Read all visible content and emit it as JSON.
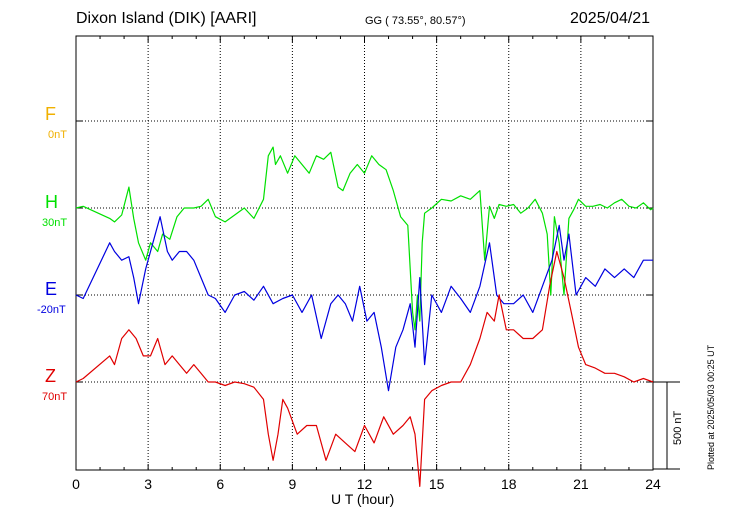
{
  "header": {
    "station": "Dixon Island (DIK)  [AARI]",
    "coords": "GG ( 73.55°,  80.57°)",
    "date": "2025/04/21"
  },
  "footer": {
    "plotted": "Plotted at 2025/05/03 00:25 UT",
    "scale_bar": "500 nT"
  },
  "chart_data": {
    "type": "line",
    "xlabel": "U T (hour)",
    "xlim": [
      0,
      24
    ],
    "xticks": [
      0,
      3,
      6,
      9,
      12,
      15,
      18,
      21,
      24
    ],
    "grid": true,
    "series": [
      {
        "name": "F",
        "baseline_label": "0nT",
        "color": "#f0b000",
        "x": [],
        "y": []
      },
      {
        "name": "H",
        "baseline_label": "30nT",
        "color": "#00e000",
        "x": [
          0,
          0.3,
          1.4,
          1.6,
          1.9,
          2.2,
          2.4,
          2.6,
          2.9,
          3.1,
          3.4,
          3.6,
          3.9,
          4.2,
          4.5,
          4.9,
          5.2,
          5.5,
          5.8,
          6.2,
          6.6,
          7.0,
          7.4,
          7.8,
          8.0,
          8.2,
          8.3,
          8.5,
          8.8,
          9.1,
          9.4,
          9.7,
          10.0,
          10.3,
          10.6,
          10.9,
          11.1,
          11.4,
          11.7,
          12.0,
          12.3,
          12.6,
          12.9,
          13.2,
          13.5,
          13.8,
          14.0,
          14.1,
          14.2,
          14.3,
          14.4,
          14.5,
          14.8,
          15.2,
          15.6,
          16.0,
          16.4,
          16.8,
          17.0,
          17.2,
          17.4,
          17.6,
          17.9,
          18.2,
          18.5,
          18.8,
          19.1,
          19.4,
          19.6,
          19.75,
          19.9,
          20.1,
          20.3,
          20.5,
          20.7,
          20.9,
          21.2,
          21.5,
          21.8,
          22.1,
          22.4,
          22.7,
          23.0,
          23.3,
          23.6,
          23.9,
          24
        ],
        "y": [
          0,
          10,
          -60,
          -80,
          -40,
          120,
          -60,
          -200,
          -300,
          -200,
          -250,
          -150,
          -180,
          -50,
          0,
          0,
          10,
          50,
          -50,
          -80,
          -40,
          0,
          -60,
          50,
          300,
          350,
          250,
          300,
          200,
          300,
          250,
          200,
          300,
          280,
          320,
          120,
          100,
          200,
          250,
          200,
          300,
          250,
          220,
          100,
          -50,
          -100,
          -600,
          -700,
          -500,
          -650,
          -200,
          -30,
          0,
          50,
          40,
          70,
          50,
          100,
          -300,
          10,
          -60,
          20,
          10,
          20,
          -30,
          0,
          50,
          -30,
          -150,
          -500,
          -50,
          -200,
          -500,
          -60,
          -10,
          50,
          10,
          10,
          20,
          0,
          30,
          50,
          10,
          0,
          30,
          -10,
          0
        ]
      },
      {
        "name": "E",
        "baseline_label": "-20nT",
        "color": "#0000e0",
        "x": [
          0,
          0.3,
          1.4,
          1.6,
          1.9,
          2.2,
          2.4,
          2.6,
          2.9,
          3.2,
          3.5,
          3.8,
          4.0,
          4.3,
          4.6,
          4.9,
          5.2,
          5.5,
          5.8,
          6.2,
          6.6,
          7.0,
          7.4,
          7.8,
          8.2,
          8.6,
          9.0,
          9.4,
          9.8,
          10.2,
          10.6,
          10.9,
          11.2,
          11.5,
          11.8,
          12.1,
          12.4,
          12.7,
          13.0,
          13.3,
          13.6,
          13.9,
          14.1,
          14.3,
          14.5,
          14.8,
          15.2,
          15.6,
          16.0,
          16.4,
          16.8,
          17.2,
          17.5,
          17.8,
          18.2,
          18.6,
          19.0,
          19.4,
          19.8,
          20.1,
          20.3,
          20.5,
          20.8,
          21.2,
          21.6,
          22.0,
          22.4,
          22.8,
          23.2,
          23.6,
          24
        ],
        "y": [
          0,
          -20,
          300,
          250,
          200,
          220,
          100,
          -50,
          150,
          300,
          450,
          250,
          200,
          250,
          250,
          200,
          100,
          0,
          -20,
          -100,
          0,
          20,
          -30,
          50,
          -50,
          -20,
          0,
          -100,
          0,
          -250,
          -50,
          0,
          -50,
          -150,
          50,
          -150,
          -100,
          -300,
          -550,
          -300,
          -200,
          -50,
          -300,
          100,
          -400,
          0,
          -100,
          50,
          -20,
          -100,
          50,
          300,
          0,
          -50,
          -50,
          0,
          -100,
          50,
          200,
          400,
          200,
          350,
          0,
          100,
          50,
          150,
          100,
          150,
          100,
          200,
          200
        ]
      },
      {
        "name": "Z",
        "baseline_label": "70nT",
        "color": "#e00000",
        "x": [
          0,
          0.3,
          1.4,
          1.6,
          1.9,
          2.2,
          2.5,
          2.8,
          3.1,
          3.4,
          3.7,
          4.0,
          4.3,
          4.6,
          4.9,
          5.2,
          5.5,
          5.8,
          6.2,
          6.6,
          7.0,
          7.4,
          7.8,
          8.0,
          8.2,
          8.4,
          8.6,
          8.8,
          9.2,
          9.6,
          10.0,
          10.4,
          10.8,
          11.2,
          11.6,
          12.0,
          12.4,
          12.8,
          13.2,
          13.6,
          13.9,
          14.1,
          14.3,
          14.5,
          14.8,
          15.2,
          15.6,
          16.0,
          16.4,
          16.8,
          17.1,
          17.4,
          17.6,
          17.9,
          18.2,
          18.6,
          19.0,
          19.4,
          19.7,
          20.0,
          20.3,
          20.6,
          20.9,
          21.2,
          21.6,
          22.0,
          22.4,
          22.8,
          23.2,
          23.6,
          24
        ],
        "y": [
          0,
          20,
          150,
          100,
          250,
          300,
          250,
          150,
          150,
          250,
          100,
          150,
          100,
          50,
          100,
          50,
          0,
          0,
          -20,
          0,
          -10,
          -30,
          -100,
          -300,
          -450,
          -300,
          -100,
          -150,
          -300,
          -250,
          -250,
          -450,
          -300,
          -350,
          -400,
          -250,
          -350,
          -200,
          -300,
          -250,
          -200,
          -300,
          -600,
          -100,
          -50,
          -20,
          0,
          0,
          100,
          250,
          400,
          350,
          500,
          300,
          300,
          250,
          250,
          300,
          550,
          750,
          600,
          400,
          200,
          100,
          80,
          50,
          50,
          30,
          0,
          20,
          0
        ]
      }
    ]
  }
}
